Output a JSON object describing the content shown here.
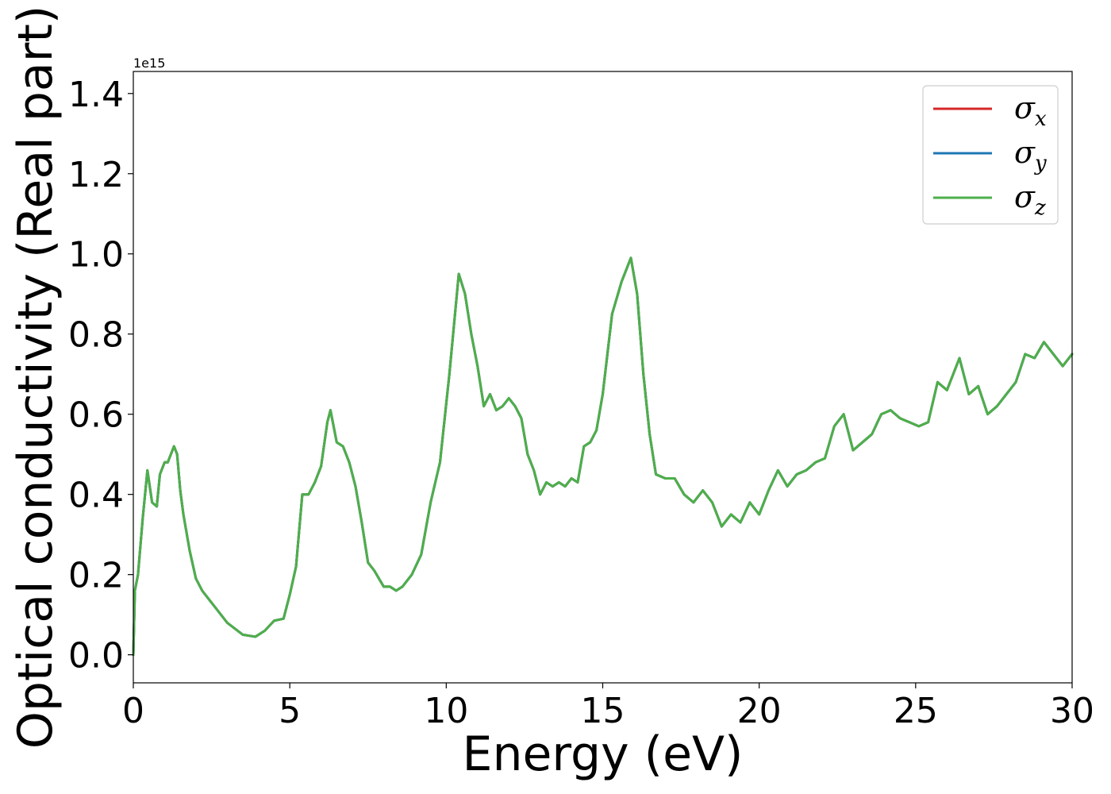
{
  "chart_data": {
    "type": "line",
    "title": "",
    "xlabel": "Energy (eV)",
    "ylabel": "Optical conductivity (Real part)",
    "y_offset_label": "1e15",
    "xlim": [
      0,
      30
    ],
    "ylim": [
      -0.07,
      1.455
    ],
    "x_ticks": [
      0,
      5,
      10,
      15,
      20,
      25,
      30
    ],
    "x_tick_labels": [
      "0",
      "5",
      "10",
      "15",
      "20",
      "25",
      "30"
    ],
    "y_ticks": [
      0.0,
      0.2,
      0.4,
      0.6,
      0.8,
      1.0,
      1.2,
      1.4
    ],
    "y_tick_labels": [
      "0.0",
      "0.2",
      "0.4",
      "0.6",
      "0.8",
      "1.0",
      "1.2",
      "1.4"
    ],
    "grid": false,
    "legend_position": "top-right",
    "x": [
      0,
      0.05,
      0.15,
      0.3,
      0.45,
      0.6,
      0.75,
      0.85,
      1.0,
      1.1,
      1.2,
      1.3,
      1.4,
      1.5,
      1.6,
      1.8,
      2.0,
      2.2,
      2.5,
      3.0,
      3.5,
      3.9,
      4.2,
      4.5,
      4.8,
      5.0,
      5.2,
      5.4,
      5.6,
      5.8,
      6.0,
      6.2,
      6.3,
      6.5,
      6.7,
      6.9,
      7.1,
      7.3,
      7.5,
      7.7,
      8.0,
      8.2,
      8.4,
      8.6,
      8.9,
      9.2,
      9.5,
      9.8,
      10.1,
      10.4,
      10.6,
      10.8,
      11.0,
      11.2,
      11.4,
      11.6,
      11.8,
      12.0,
      12.2,
      12.4,
      12.6,
      12.8,
      13.0,
      13.2,
      13.4,
      13.6,
      13.8,
      14.0,
      14.2,
      14.4,
      14.6,
      14.8,
      15.0,
      15.3,
      15.6,
      15.9,
      16.1,
      16.3,
      16.5,
      16.7,
      17.0,
      17.3,
      17.6,
      17.9,
      18.2,
      18.5,
      18.8,
      19.1,
      19.4,
      19.7,
      20.0,
      20.3,
      20.6,
      20.9,
      21.2,
      21.5,
      21.8,
      22.1,
      22.4,
      22.7,
      23.0,
      23.3,
      23.6,
      23.9,
      24.2,
      24.5,
      24.8,
      25.1,
      25.4,
      25.7,
      26.0,
      26.4,
      26.7,
      27.0,
      27.3,
      27.6,
      27.9,
      28.2,
      28.5,
      28.8,
      29.1,
      29.4,
      29.7,
      30.0
    ],
    "series": [
      {
        "name": "σx",
        "color": "#d62728",
        "values": [
          0.0,
          0.16,
          0.2,
          0.34,
          0.46,
          0.38,
          0.37,
          0.45,
          0.48,
          0.48,
          0.5,
          0.52,
          0.5,
          0.41,
          0.35,
          0.26,
          0.19,
          0.16,
          0.13,
          0.08,
          0.05,
          0.045,
          0.06,
          0.085,
          0.09,
          0.15,
          0.22,
          0.4,
          0.4,
          0.43,
          0.47,
          0.58,
          0.61,
          0.53,
          0.52,
          0.48,
          0.42,
          0.33,
          0.23,
          0.21,
          0.17,
          0.17,
          0.16,
          0.17,
          0.2,
          0.25,
          0.38,
          0.48,
          0.7,
          0.95,
          0.9,
          0.8,
          0.72,
          0.62,
          0.65,
          0.61,
          0.62,
          0.64,
          0.62,
          0.59,
          0.5,
          0.46,
          0.4,
          0.43,
          0.42,
          0.43,
          0.42,
          0.44,
          0.43,
          0.52,
          0.53,
          0.56,
          0.65,
          0.85,
          0.93,
          0.99,
          0.9,
          0.7,
          0.55,
          0.45,
          0.44,
          0.44,
          0.4,
          0.38,
          0.41,
          0.38,
          0.32,
          0.35,
          0.33,
          0.38,
          0.35,
          0.41,
          0.46,
          0.42,
          0.45,
          0.46,
          0.48,
          0.49,
          0.57,
          0.6,
          0.51,
          0.53,
          0.55,
          0.6,
          0.61,
          0.59,
          0.58,
          0.57,
          0.58,
          0.68,
          0.66,
          0.74,
          0.65,
          0.67,
          0.6,
          0.62,
          0.65,
          0.68,
          0.75,
          0.74,
          0.78,
          0.75,
          0.72,
          0.75
        ]
      },
      {
        "name": "σy",
        "color": "#1f77b4",
        "values": [
          0.0,
          0.16,
          0.2,
          0.34,
          0.46,
          0.38,
          0.37,
          0.45,
          0.48,
          0.48,
          0.5,
          0.52,
          0.5,
          0.41,
          0.35,
          0.26,
          0.19,
          0.16,
          0.13,
          0.08,
          0.05,
          0.045,
          0.06,
          0.085,
          0.09,
          0.15,
          0.22,
          0.4,
          0.4,
          0.43,
          0.47,
          0.58,
          0.61,
          0.53,
          0.52,
          0.48,
          0.42,
          0.33,
          0.23,
          0.21,
          0.17,
          0.17,
          0.16,
          0.17,
          0.2,
          0.25,
          0.38,
          0.48,
          0.7,
          0.95,
          0.9,
          0.8,
          0.72,
          0.62,
          0.65,
          0.61,
          0.62,
          0.64,
          0.62,
          0.59,
          0.5,
          0.46,
          0.4,
          0.43,
          0.42,
          0.43,
          0.42,
          0.44,
          0.43,
          0.52,
          0.53,
          0.56,
          0.65,
          0.85,
          0.93,
          0.99,
          0.9,
          0.7,
          0.55,
          0.45,
          0.44,
          0.44,
          0.4,
          0.38,
          0.41,
          0.38,
          0.32,
          0.35,
          0.33,
          0.38,
          0.35,
          0.41,
          0.46,
          0.42,
          0.45,
          0.46,
          0.48,
          0.49,
          0.57,
          0.6,
          0.51,
          0.53,
          0.55,
          0.6,
          0.61,
          0.59,
          0.58,
          0.57,
          0.58,
          0.68,
          0.66,
          0.74,
          0.65,
          0.67,
          0.6,
          0.62,
          0.65,
          0.68,
          0.75,
          0.74,
          0.78,
          0.75,
          0.72,
          0.75
        ]
      },
      {
        "name": "σz",
        "color": "#4daf4a",
        "values": [
          0.0,
          0.16,
          0.2,
          0.34,
          0.46,
          0.38,
          0.37,
          0.45,
          0.48,
          0.48,
          0.5,
          0.52,
          0.5,
          0.41,
          0.35,
          0.26,
          0.19,
          0.16,
          0.13,
          0.08,
          0.05,
          0.045,
          0.06,
          0.085,
          0.09,
          0.15,
          0.22,
          0.4,
          0.4,
          0.43,
          0.47,
          0.58,
          0.61,
          0.53,
          0.52,
          0.48,
          0.42,
          0.33,
          0.23,
          0.21,
          0.17,
          0.17,
          0.16,
          0.17,
          0.2,
          0.25,
          0.38,
          0.48,
          0.7,
          0.95,
          0.9,
          0.8,
          0.72,
          0.62,
          0.65,
          0.61,
          0.62,
          0.64,
          0.62,
          0.59,
          0.5,
          0.46,
          0.4,
          0.43,
          0.42,
          0.43,
          0.42,
          0.44,
          0.43,
          0.52,
          0.53,
          0.56,
          0.65,
          0.85,
          0.93,
          0.99,
          0.9,
          0.7,
          0.55,
          0.45,
          0.44,
          0.44,
          0.4,
          0.38,
          0.41,
          0.38,
          0.32,
          0.35,
          0.33,
          0.38,
          0.35,
          0.41,
          0.46,
          0.42,
          0.45,
          0.46,
          0.48,
          0.49,
          0.57,
          0.6,
          0.51,
          0.53,
          0.55,
          0.6,
          0.61,
          0.59,
          0.58,
          0.57,
          0.58,
          0.68,
          0.66,
          0.74,
          0.65,
          0.67,
          0.6,
          0.62,
          0.65,
          0.68,
          0.75,
          0.74,
          0.78,
          0.75,
          0.72,
          0.75
        ]
      }
    ],
    "legend": [
      {
        "symbol": "σ",
        "sub": "x",
        "color": "#d62728"
      },
      {
        "symbol": "σ",
        "sub": "y",
        "color": "#1f77b4"
      },
      {
        "symbol": "σ",
        "sub": "z",
        "color": "#4daf4a"
      }
    ]
  }
}
